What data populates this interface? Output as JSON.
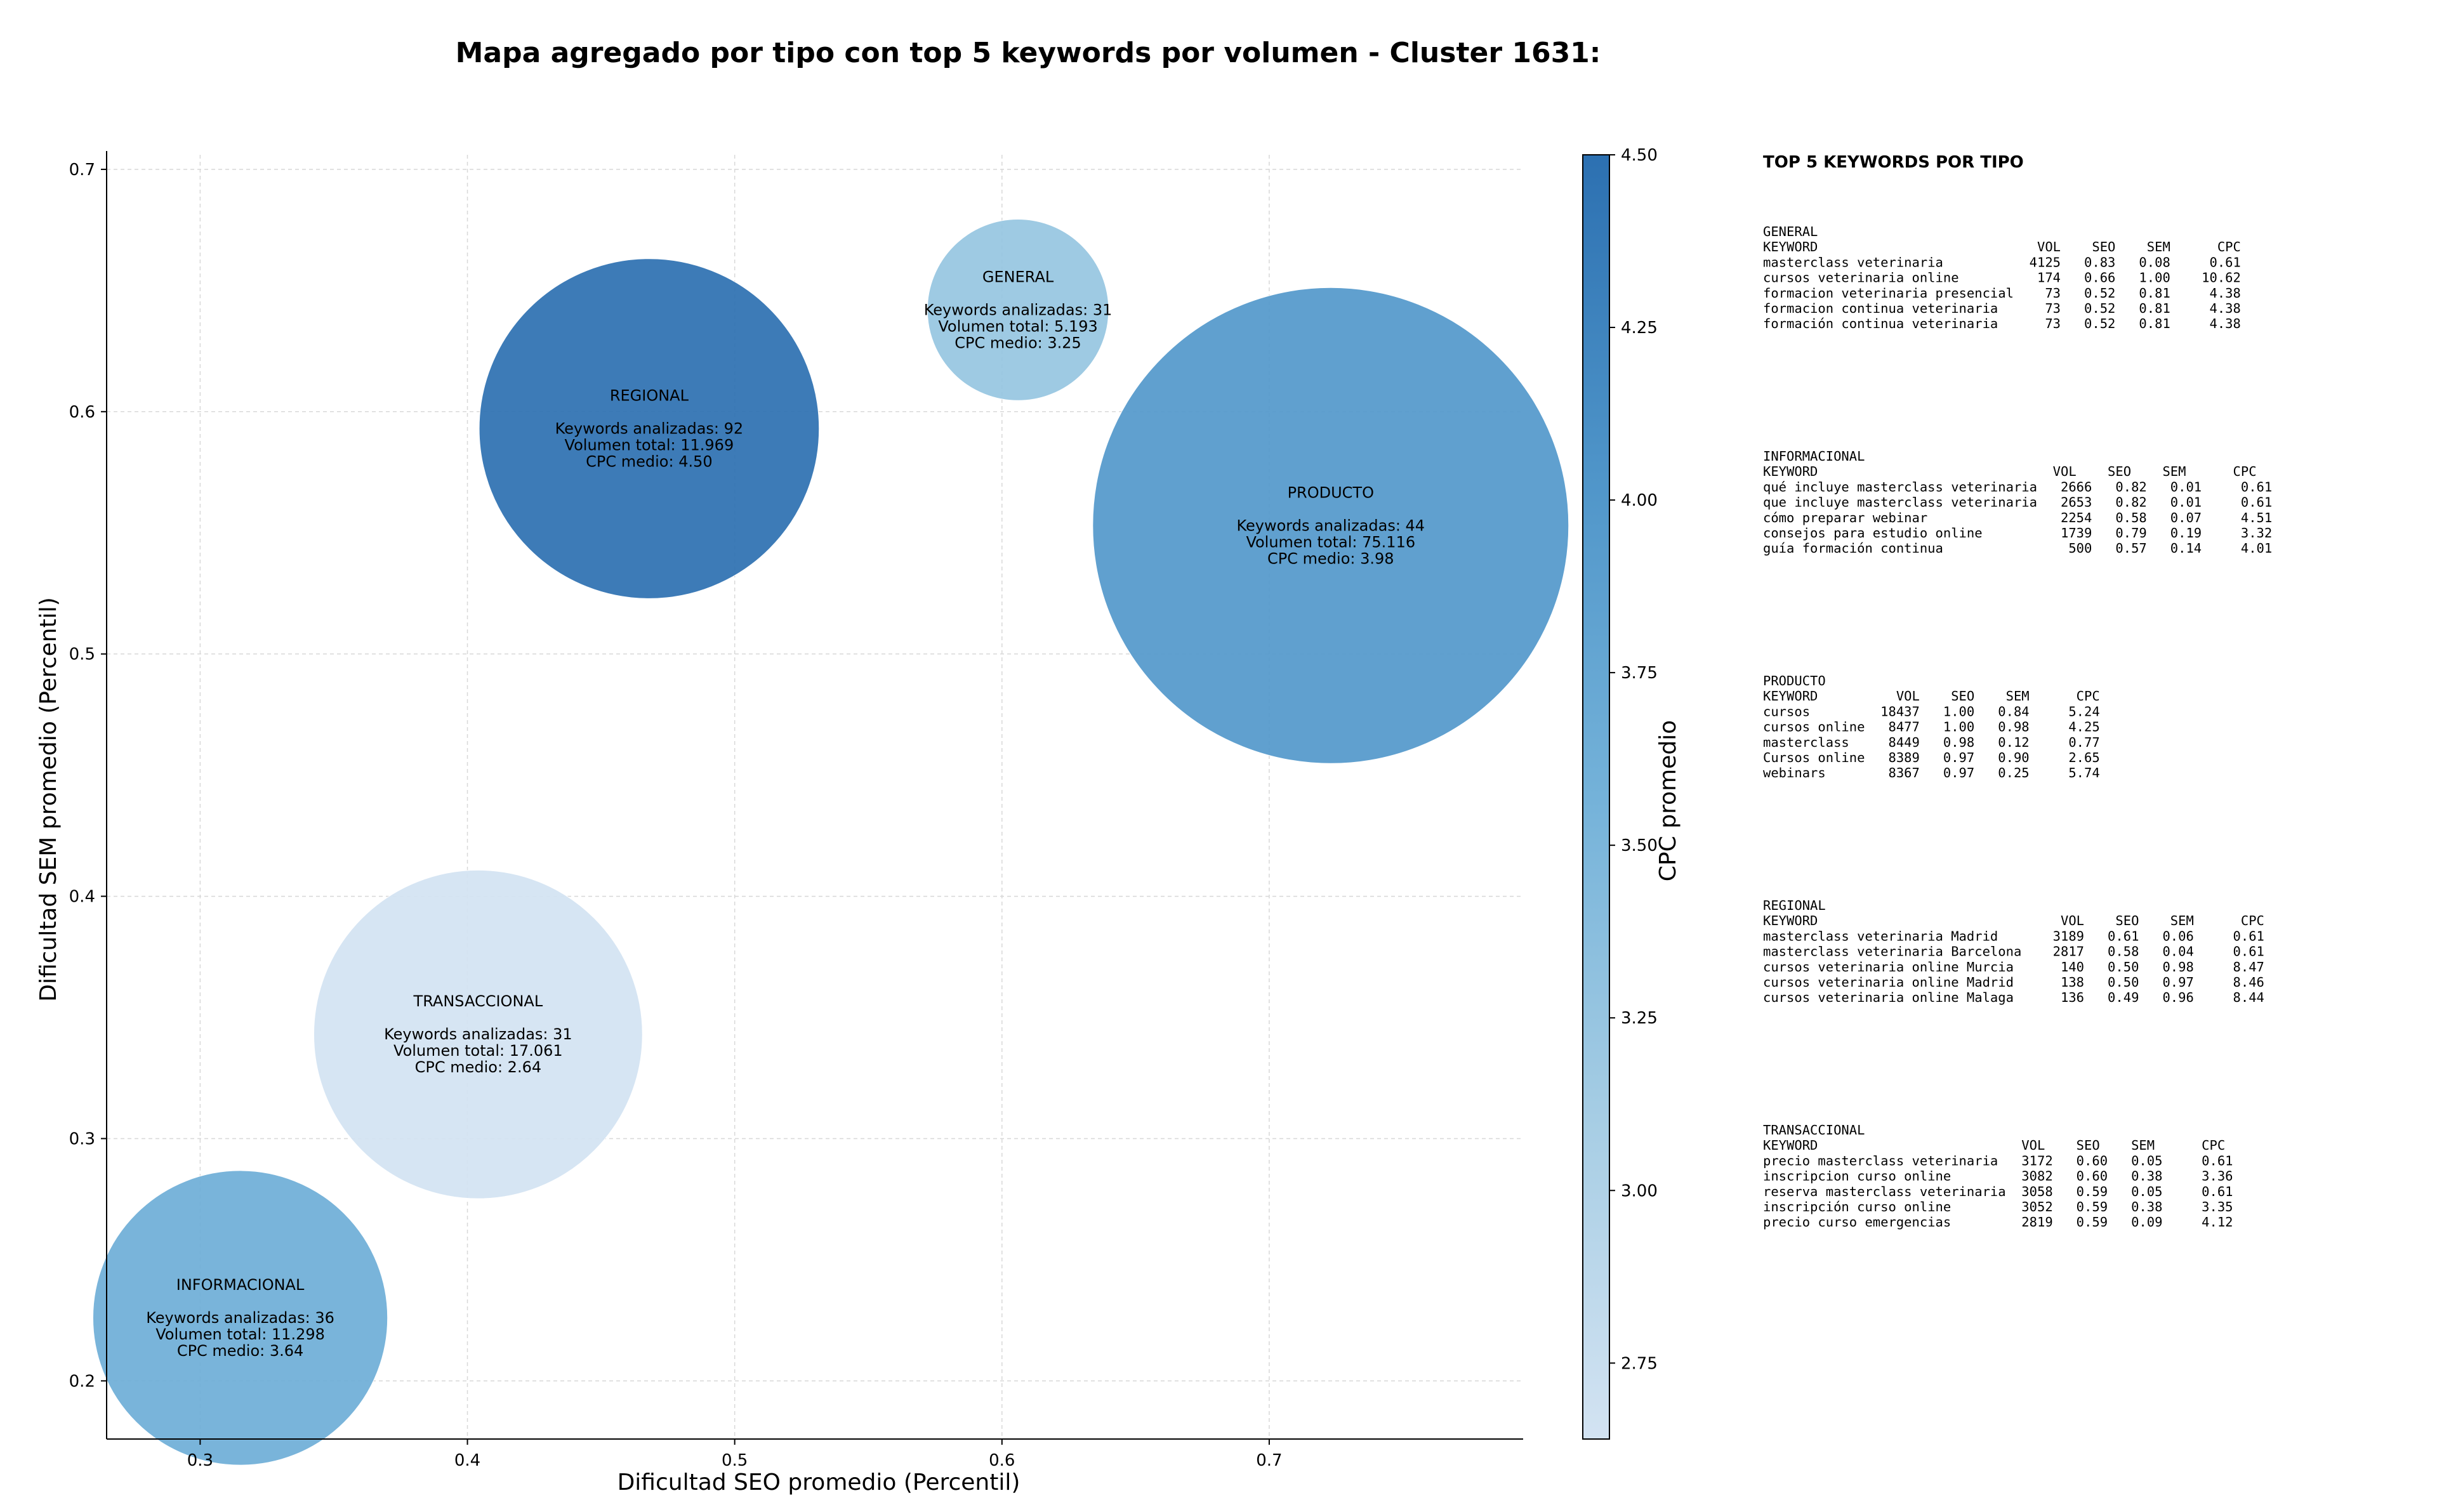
{
  "chart_data": {
    "type": "scatter",
    "title": "Mapa agregado por tipo con top 5 keywords por volumen - Cluster 1631:",
    "xlabel": "Dificultad SEO promedio (Percentil)",
    "ylabel": "Dificultad SEM promedio (Percentil)",
    "xlim": [
      0.265,
      0.795
    ],
    "ylim": [
      0.176,
      0.706
    ],
    "xticks": [
      0.3,
      0.4,
      0.5,
      0.6,
      0.7
    ],
    "yticks": [
      0.2,
      0.3,
      0.4,
      0.5,
      0.6,
      0.7
    ],
    "grid": true,
    "colorbar": {
      "label": "CPC promedio",
      "min": 2.64,
      "max": 4.5,
      "ticks": [
        2.75,
        3.0,
        3.25,
        3.5,
        3.75,
        4.0,
        4.25,
        4.5
      ],
      "colormap": [
        "#d3e3f2",
        "#a6cde4",
        "#74b2d9",
        "#4f95c9",
        "#2c70b1"
      ]
    },
    "annotation_prefixes": {
      "keywords": "Keywords analizadas: ",
      "volume": "Volumen total: ",
      "cpc": "CPC medio: "
    },
    "points": [
      {
        "name": "REGIONAL",
        "x": 0.468,
        "y": 0.593,
        "keywords": 92,
        "volume": 11969,
        "volume_label": "11.969",
        "cpc": 4.5,
        "cpc_label": "4.50",
        "size": 0.3
      },
      {
        "name": "GENERAL",
        "x": 0.606,
        "y": 0.642,
        "keywords": 31,
        "volume": 5193,
        "volume_label": "5.193",
        "cpc": 3.25,
        "cpc_label": "3.25",
        "size": 0.16
      },
      {
        "name": "PRODUCTO",
        "x": 0.723,
        "y": 0.553,
        "keywords": 44,
        "volume": 75116,
        "volume_label": "75.116",
        "cpc": 3.98,
        "cpc_label": "3.98",
        "size": 0.42
      },
      {
        "name": "TRANSACCIONAL",
        "x": 0.404,
        "y": 0.343,
        "keywords": 31,
        "volume": 17061,
        "volume_label": "17.061",
        "cpc": 2.64,
        "cpc_label": "2.64",
        "size": 0.29
      },
      {
        "name": "INFORMACIONAL",
        "x": 0.315,
        "y": 0.226,
        "keywords": 36,
        "volume": 11298,
        "volume_label": "11.298",
        "cpc": 3.64,
        "cpc_label": "3.64",
        "size": 0.26
      }
    ],
    "side_table": {
      "title": "TOP 5 KEYWORDS POR TIPO",
      "groups": [
        {
          "name": "GENERAL",
          "lines": [
            "KEYWORD                            VOL    SEO    SEM      CPC",
            "masterclass veterinaria           4125   0.83   0.08     0.61",
            "cursos veterinaria online          174   0.66   1.00    10.62",
            "formacion veterinaria presencial    73   0.52   0.81     4.38",
            "formacion continua veterinaria      73   0.52   0.81     4.38",
            "formación continua veterinaria      73   0.52   0.81     4.38"
          ]
        },
        {
          "name": "INFORMACIONAL",
          "lines": [
            "KEYWORD                              VOL    SEO    SEM      CPC",
            "qué incluye masterclass veterinaria   2666   0.82   0.01     0.61",
            "que incluye masterclass veterinaria   2653   0.82   0.01     0.61",
            "cómo preparar webinar                 2254   0.58   0.07     4.51",
            "consejos para estudio online          1739   0.79   0.19     3.32",
            "guía formación continua                500   0.57   0.14     4.01"
          ]
        },
        {
          "name": "PRODUCTO",
          "lines": [
            "KEYWORD          VOL    SEO    SEM      CPC",
            "cursos         18437   1.00   0.84     5.24",
            "cursos online   8477   1.00   0.98     4.25",
            "masterclass     8449   0.98   0.12     0.77",
            "Cursos online   8389   0.97   0.90     2.65",
            "webinars        8367   0.97   0.25     5.74"
          ]
        },
        {
          "name": "REGIONAL",
          "lines": [
            "KEYWORD                               VOL    SEO    SEM      CPC",
            "masterclass veterinaria Madrid       3189   0.61   0.06     0.61",
            "masterclass veterinaria Barcelona    2817   0.58   0.04     0.61",
            "cursos veterinaria online Murcia      140   0.50   0.98     8.47",
            "cursos veterinaria online Madrid      138   0.50   0.97     8.46",
            "cursos veterinaria online Malaga      136   0.49   0.96     8.44"
          ]
        },
        {
          "name": "TRANSACCIONAL",
          "lines": [
            "KEYWORD                          VOL    SEO    SEM      CPC",
            "precio masterclass veterinaria   3172   0.60   0.05     0.61",
            "inscripcion curso online         3082   0.60   0.38     3.36",
            "reserva masterclass veterinaria  3058   0.59   0.05     0.61",
            "inscripción curso online         3052   0.59   0.38     3.35",
            "precio curso emergencias         2819   0.59   0.09     4.12"
          ]
        }
      ]
    }
  }
}
